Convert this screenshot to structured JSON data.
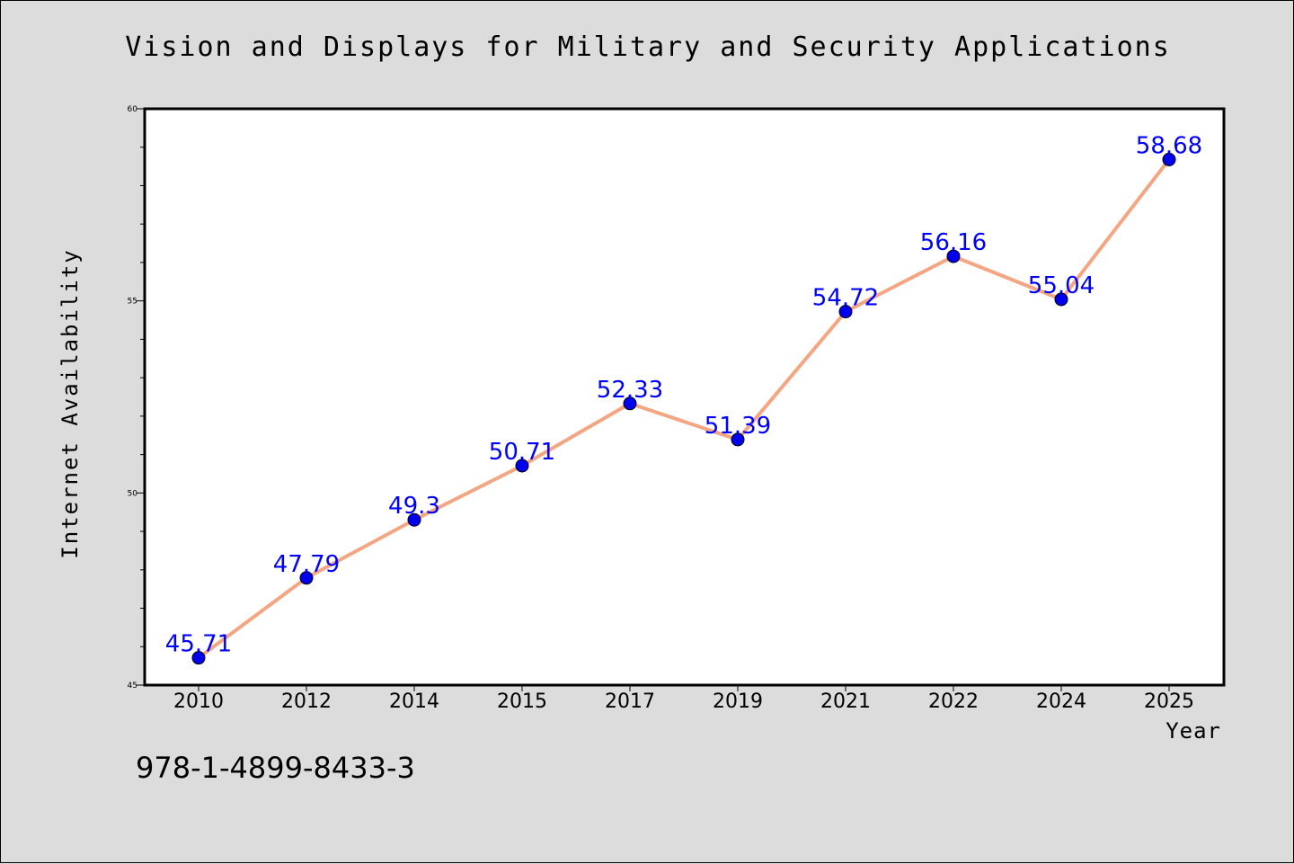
{
  "chart_data": {
    "type": "line",
    "title": "Vision and Displays for Military and Security Applications",
    "xlabel": "Year",
    "ylabel": "Internet Availability",
    "categories": [
      "2010",
      "2012",
      "2014",
      "2015",
      "2017",
      "2019",
      "2021",
      "2022",
      "2024",
      "2025"
    ],
    "series": [
      {
        "values": [
          45.71,
          47.79,
          49.3,
          50.71,
          52.33,
          51.39,
          54.72,
          56.16,
          55.04,
          58.68
        ],
        "labels": [
          "45.71",
          "47.79",
          "49.3",
          "50.71",
          "52.33",
          "51.39",
          "54.72",
          "56.16",
          "55.04",
          "58.68"
        ],
        "line_color": "#f4a582",
        "marker_color": "#0000ee",
        "label_color": "#0000ff"
      }
    ],
    "ylim": [
      45,
      60
    ],
    "yticks": [
      45,
      50,
      55,
      60
    ],
    "y_minor_step": 1,
    "grid": false,
    "legend": "none"
  },
  "annotation": {
    "text": "978-1-4899-8433-3"
  },
  "colors": {
    "figure_background": "#dcdcdc",
    "plot_background": "#ffffff"
  }
}
